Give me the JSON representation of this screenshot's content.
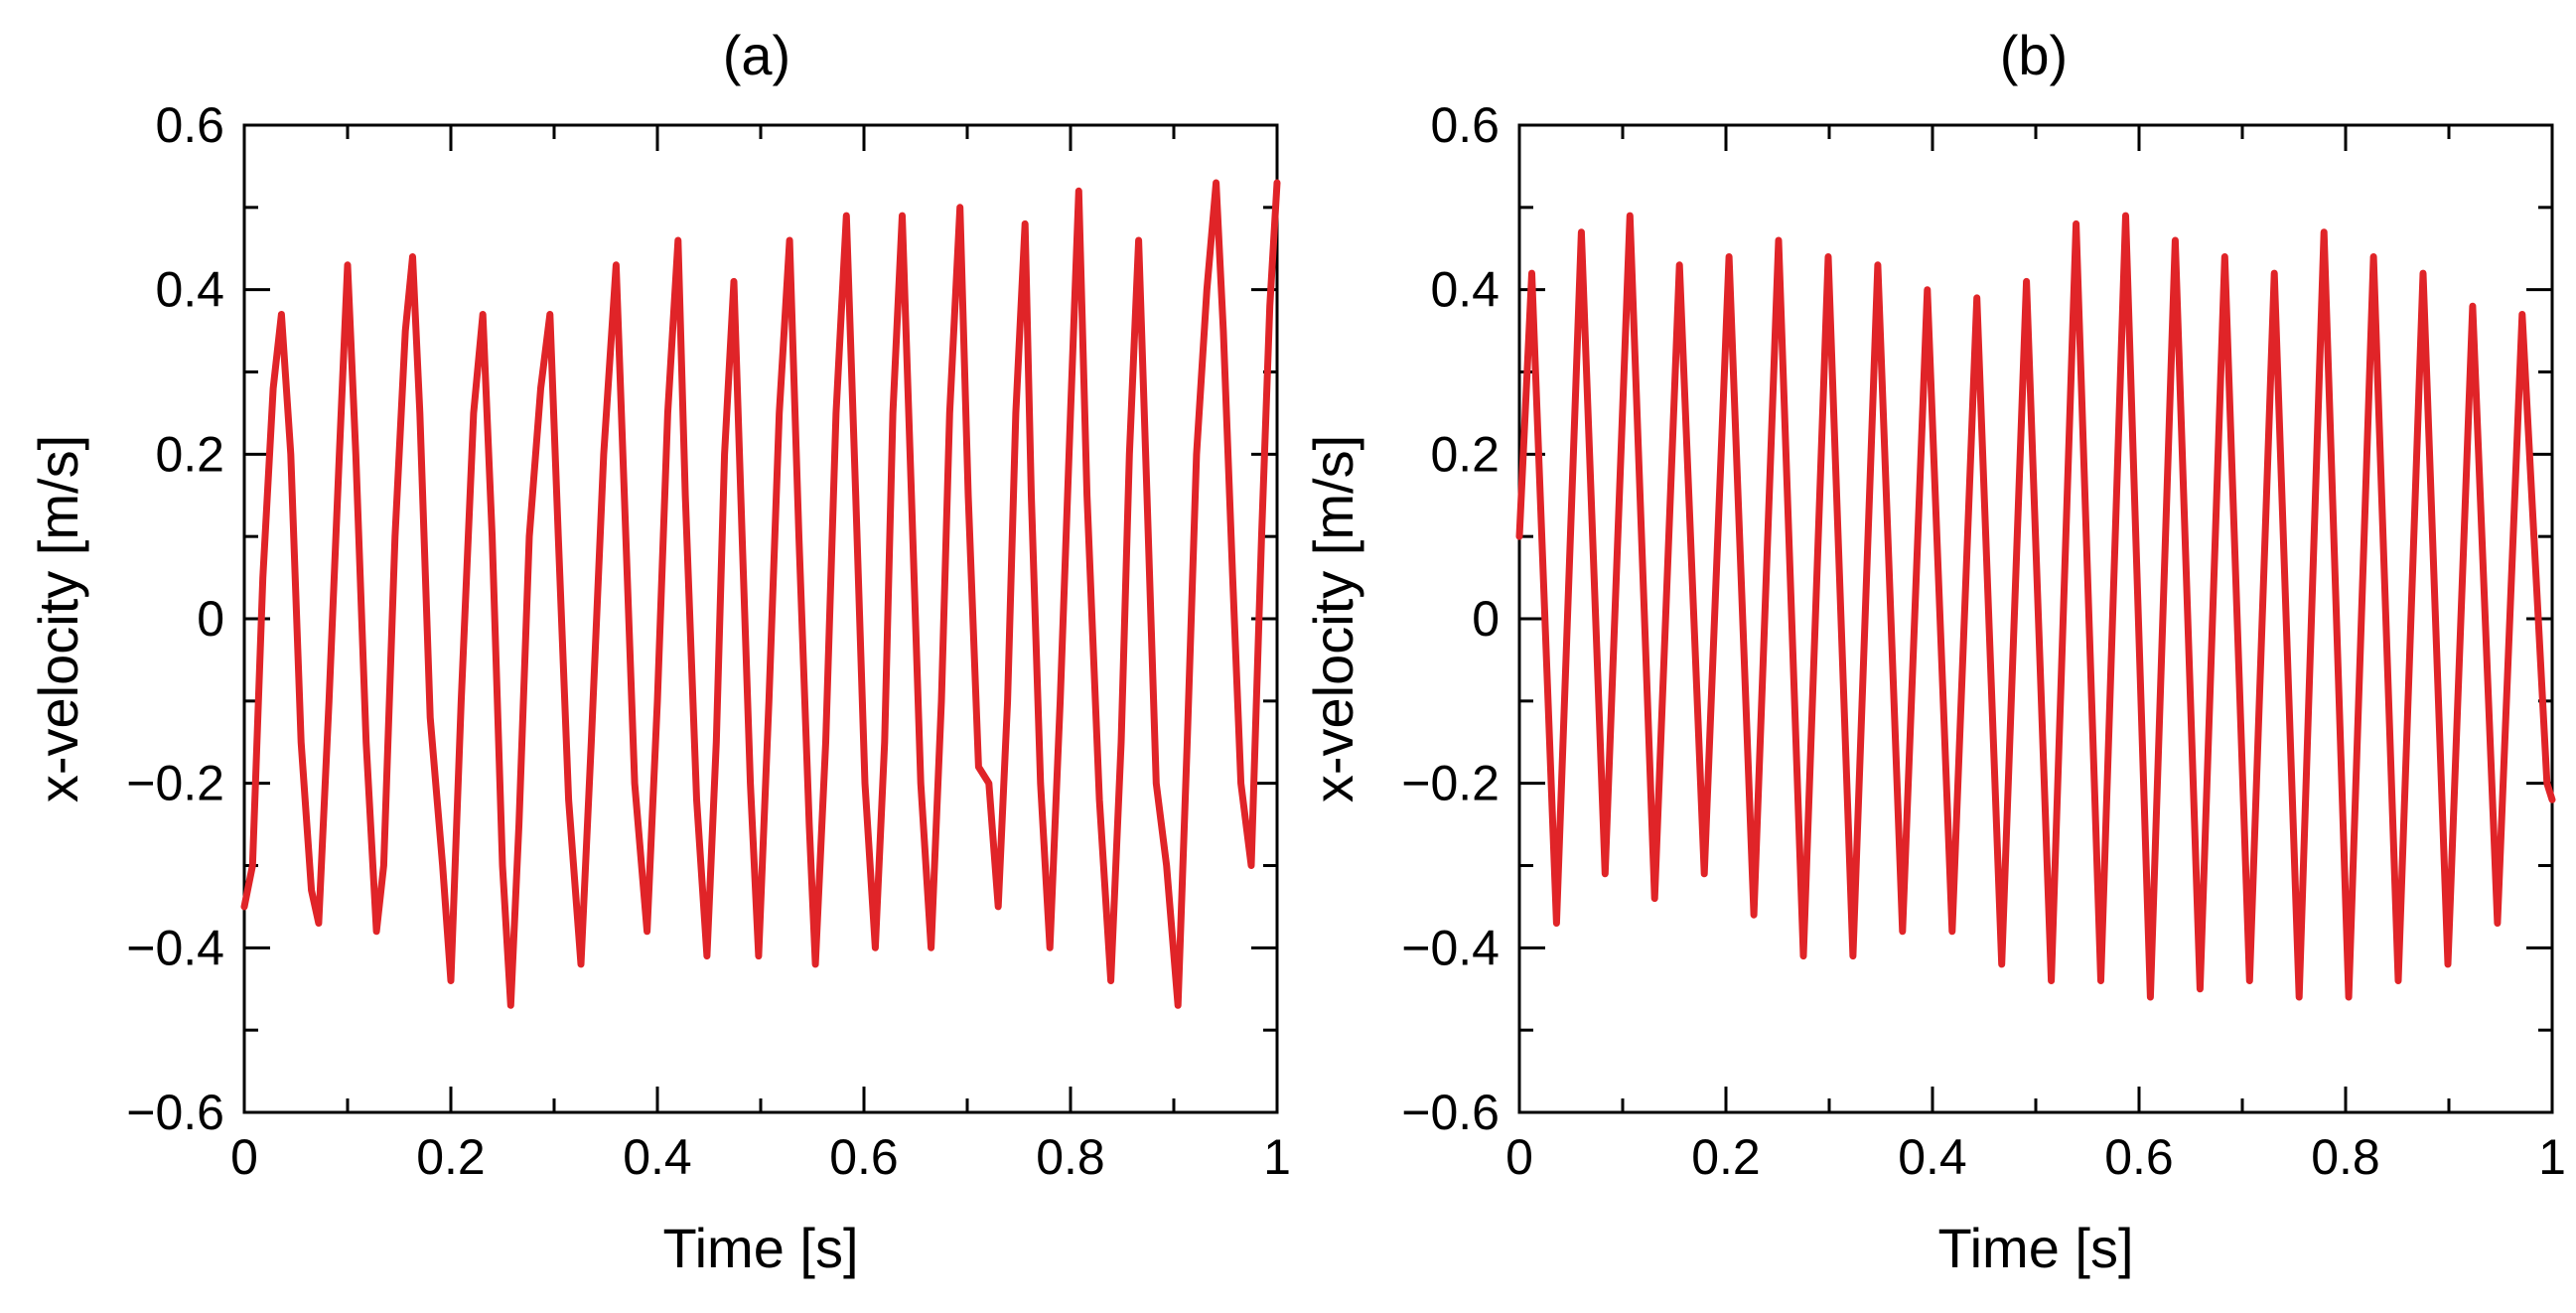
{
  "chart_data": [
    {
      "type": "line",
      "title": "(a)",
      "xlabel": "Time [s]",
      "ylabel": "x-velocity [m/s]",
      "xlim": [
        0,
        1
      ],
      "ylim": [
        -0.6,
        0.6
      ],
      "xticks": [
        0,
        0.2,
        0.4,
        0.6,
        0.8,
        1
      ],
      "xtick_labels": [
        "0",
        "0.2",
        "0.4",
        "0.6",
        "0.8",
        "1"
      ],
      "yticks": [
        -0.6,
        -0.4,
        -0.2,
        0,
        0.2,
        0.4,
        0.6
      ],
      "ytick_labels": [
        "−0.6",
        "−0.4",
        "−0.2",
        "0",
        "0.2",
        "0.4",
        "0.6"
      ],
      "grid": false,
      "color": "#e02428",
      "series": [
        {
          "name": "x-velocity",
          "x": [
            0.0,
            0.008,
            0.018,
            0.028,
            0.036,
            0.045,
            0.055,
            0.065,
            0.072,
            0.082,
            0.092,
            0.1,
            0.108,
            0.118,
            0.128,
            0.135,
            0.146,
            0.156,
            0.163,
            0.17,
            0.18,
            0.192,
            0.2,
            0.21,
            0.222,
            0.231,
            0.24,
            0.25,
            0.258,
            0.266,
            0.276,
            0.287,
            0.296,
            0.304,
            0.314,
            0.326,
            0.336,
            0.348,
            0.36,
            0.368,
            0.378,
            0.39,
            0.4,
            0.41,
            0.42,
            0.427,
            0.438,
            0.448,
            0.457,
            0.465,
            0.474,
            0.482,
            0.49,
            0.498,
            0.508,
            0.518,
            0.528,
            0.537,
            0.547,
            0.553,
            0.563,
            0.573,
            0.583,
            0.592,
            0.601,
            0.611,
            0.62,
            0.628,
            0.637,
            0.646,
            0.655,
            0.665,
            0.675,
            0.683,
            0.693,
            0.701,
            0.711,
            0.721,
            0.73,
            0.739,
            0.747,
            0.756,
            0.762,
            0.771,
            0.78,
            0.79,
            0.8,
            0.808,
            0.816,
            0.828,
            0.839,
            0.849,
            0.857,
            0.866,
            0.874,
            0.883,
            0.893,
            0.904,
            0.913,
            0.922,
            0.932,
            0.941,
            0.948,
            0.957,
            0.965,
            0.975,
            0.985,
            0.993,
            1.0
          ],
          "y": [
            -0.35,
            -0.3,
            0.05,
            0.28,
            0.37,
            0.2,
            -0.15,
            -0.33,
            -0.37,
            -0.1,
            0.2,
            0.43,
            0.2,
            -0.15,
            -0.38,
            -0.3,
            0.1,
            0.35,
            0.44,
            0.25,
            -0.12,
            -0.3,
            -0.44,
            -0.1,
            0.25,
            0.37,
            0.1,
            -0.3,
            -0.47,
            -0.25,
            0.1,
            0.28,
            0.37,
            0.1,
            -0.22,
            -0.42,
            -0.15,
            0.2,
            0.43,
            0.15,
            -0.2,
            -0.38,
            -0.1,
            0.25,
            0.46,
            0.15,
            -0.22,
            -0.41,
            -0.15,
            0.2,
            0.41,
            0.1,
            -0.2,
            -0.41,
            -0.1,
            0.25,
            0.46,
            0.1,
            -0.25,
            -0.42,
            -0.15,
            0.25,
            0.49,
            0.15,
            -0.2,
            -0.4,
            -0.15,
            0.25,
            0.49,
            0.15,
            -0.2,
            -0.4,
            -0.1,
            0.25,
            0.5,
            0.15,
            -0.18,
            -0.2,
            -0.35,
            -0.1,
            0.25,
            0.48,
            0.15,
            -0.2,
            -0.4,
            -0.1,
            0.25,
            0.52,
            0.15,
            -0.22,
            -0.44,
            -0.15,
            0.2,
            0.46,
            0.15,
            -0.2,
            -0.3,
            -0.47,
            -0.15,
            0.2,
            0.4,
            0.53,
            0.35,
            0.05,
            -0.2,
            -0.3,
            0.1,
            0.38,
            0.53
          ]
        }
      ]
    },
    {
      "type": "line",
      "title": "(b)",
      "xlabel": "Time [s]",
      "ylabel": "x-velocity [m/s]",
      "xlim": [
        0,
        1
      ],
      "ylim": [
        -0.6,
        0.6
      ],
      "xticks": [
        0,
        0.2,
        0.4,
        0.6,
        0.8,
        1
      ],
      "xtick_labels": [
        "0",
        "0.2",
        "0.4",
        "0.6",
        "0.8",
        "1"
      ],
      "yticks": [
        -0.6,
        -0.4,
        -0.2,
        0,
        0.2,
        0.4,
        0.6
      ],
      "ytick_labels": [
        "−0.6",
        "−0.4",
        "−0.2",
        "0",
        "0.2",
        "0.4",
        "0.6"
      ],
      "grid": false,
      "color": "#e02428",
      "series": [
        {
          "name": "x-velocity",
          "x": [
            0.0,
            0.012,
            0.036,
            0.06,
            0.083,
            0.107,
            0.131,
            0.155,
            0.179,
            0.203,
            0.227,
            0.251,
            0.275,
            0.299,
            0.323,
            0.347,
            0.371,
            0.395,
            0.419,
            0.443,
            0.467,
            0.491,
            0.515,
            0.539,
            0.563,
            0.587,
            0.611,
            0.635,
            0.659,
            0.683,
            0.707,
            0.731,
            0.755,
            0.779,
            0.803,
            0.827,
            0.851,
            0.875,
            0.899,
            0.923,
            0.947,
            0.971,
            0.995,
            1.0
          ],
          "y": [
            0.1,
            0.42,
            -0.37,
            0.47,
            -0.31,
            0.49,
            -0.34,
            0.43,
            -0.31,
            0.44,
            -0.36,
            0.46,
            -0.41,
            0.44,
            -0.41,
            0.43,
            -0.38,
            0.4,
            -0.38,
            0.39,
            -0.42,
            0.41,
            -0.44,
            0.48,
            -0.44,
            0.49,
            -0.46,
            0.46,
            -0.45,
            0.44,
            -0.44,
            0.42,
            -0.46,
            0.47,
            -0.46,
            0.44,
            -0.44,
            0.42,
            -0.42,
            0.38,
            -0.37,
            0.37,
            -0.2,
            -0.22
          ]
        }
      ]
    }
  ]
}
